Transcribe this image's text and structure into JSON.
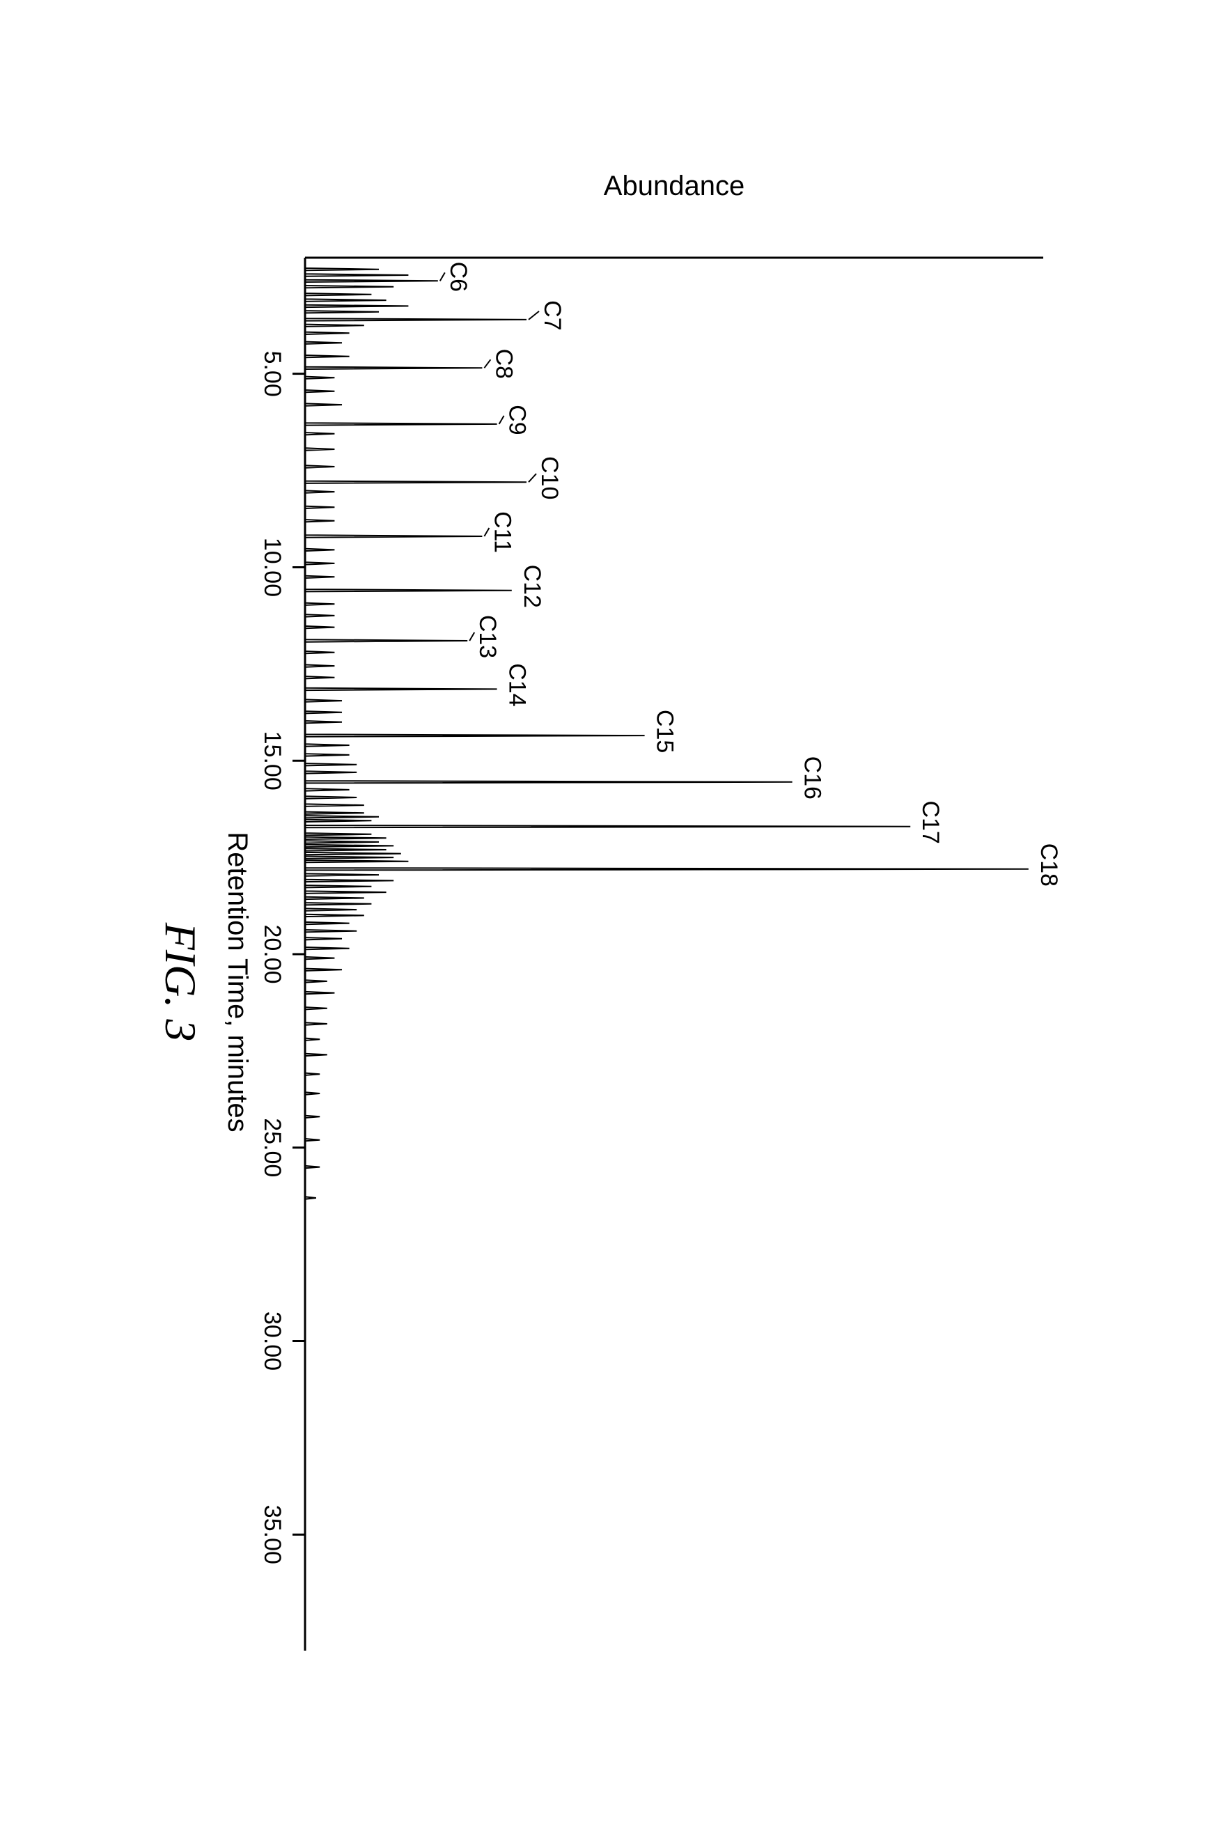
{
  "chromatogram": {
    "type": "chromatogram",
    "caption": "FIG. 3",
    "caption_fontsize": 64,
    "caption_fontfamily": "Times New Roman",
    "caption_fontstyle": "italic",
    "xlabel": "Retention Time, minutes",
    "ylabel": "Abundance",
    "label_fontsize": 40,
    "tick_fontsize": 34,
    "peak_label_fontsize": 34,
    "background_color": "#ffffff",
    "line_color": "#000000",
    "line_width": 2,
    "axis_color": "#000000",
    "axis_width": 3,
    "xlim": [
      2.0,
      38.0
    ],
    "ylim": [
      0,
      100
    ],
    "xtick_step": 5.0,
    "xticks": [
      {
        "x": 5.0,
        "label": "5.00"
      },
      {
        "x": 10.0,
        "label": "10.00"
      },
      {
        "x": 15.0,
        "label": "15.00"
      },
      {
        "x": 20.0,
        "label": "20.00"
      },
      {
        "x": 25.0,
        "label": "25.00"
      },
      {
        "x": 30.0,
        "label": "30.00"
      },
      {
        "x": 35.0,
        "label": "35.00"
      }
    ],
    "peaks": [
      {
        "name": "C6",
        "x": 2.6,
        "height": 18,
        "leader": true,
        "label_y_offset": 6
      },
      {
        "name": "C7",
        "x": 3.6,
        "height": 30,
        "leader": true,
        "label_y_offset": 14
      },
      {
        "name": "C8",
        "x": 4.85,
        "height": 24,
        "leader": true,
        "label_y_offset": 8
      },
      {
        "name": "C9",
        "x": 6.3,
        "height": 26,
        "leader": true,
        "label_y_offset": 6
      },
      {
        "name": "C10",
        "x": 7.8,
        "height": 30,
        "leader": true,
        "label_y_offset": 10
      },
      {
        "name": "C11",
        "x": 9.2,
        "height": 24,
        "leader": true,
        "label_y_offset": 6
      },
      {
        "name": "C12",
        "x": 10.6,
        "height": 28,
        "leader": false,
        "label_y_offset": 6
      },
      {
        "name": "C13",
        "x": 11.9,
        "height": 22,
        "leader": true,
        "label_y_offset": 6
      },
      {
        "name": "C14",
        "x": 13.15,
        "height": 26,
        "leader": false,
        "label_y_offset": 6
      },
      {
        "name": "C15",
        "x": 14.35,
        "height": 46,
        "leader": false,
        "label_y_offset": 6
      },
      {
        "name": "C16",
        "x": 15.55,
        "height": 66,
        "leader": false,
        "label_y_offset": 6
      },
      {
        "name": "C17",
        "x": 16.7,
        "height": 82,
        "leader": false,
        "label_y_offset": 6
      },
      {
        "name": "C18",
        "x": 17.8,
        "height": 98,
        "leader": false,
        "label_y_offset": 6
      }
    ],
    "minor_peaks": [
      {
        "x": 2.3,
        "height": 10
      },
      {
        "x": 2.45,
        "height": 14
      },
      {
        "x": 2.75,
        "height": 12
      },
      {
        "x": 2.95,
        "height": 9
      },
      {
        "x": 3.1,
        "height": 11
      },
      {
        "x": 3.25,
        "height": 14
      },
      {
        "x": 3.4,
        "height": 10
      },
      {
        "x": 3.75,
        "height": 8
      },
      {
        "x": 3.95,
        "height": 6
      },
      {
        "x": 4.2,
        "height": 5
      },
      {
        "x": 4.55,
        "height": 6
      },
      {
        "x": 5.1,
        "height": 4
      },
      {
        "x": 5.45,
        "height": 4
      },
      {
        "x": 5.8,
        "height": 5
      },
      {
        "x": 6.55,
        "height": 4
      },
      {
        "x": 6.95,
        "height": 4
      },
      {
        "x": 7.4,
        "height": 4
      },
      {
        "x": 8.05,
        "height": 4
      },
      {
        "x": 8.45,
        "height": 4
      },
      {
        "x": 8.8,
        "height": 4
      },
      {
        "x": 9.55,
        "height": 4
      },
      {
        "x": 9.9,
        "height": 4
      },
      {
        "x": 10.25,
        "height": 4
      },
      {
        "x": 10.95,
        "height": 4
      },
      {
        "x": 11.25,
        "height": 4
      },
      {
        "x": 11.55,
        "height": 4
      },
      {
        "x": 12.2,
        "height": 4
      },
      {
        "x": 12.55,
        "height": 4
      },
      {
        "x": 12.85,
        "height": 4
      },
      {
        "x": 13.45,
        "height": 5
      },
      {
        "x": 13.75,
        "height": 5
      },
      {
        "x": 14.0,
        "height": 5
      },
      {
        "x": 14.6,
        "height": 6
      },
      {
        "x": 14.85,
        "height": 6
      },
      {
        "x": 15.1,
        "height": 7
      },
      {
        "x": 15.3,
        "height": 7
      },
      {
        "x": 15.75,
        "height": 6
      },
      {
        "x": 15.95,
        "height": 7
      },
      {
        "x": 16.15,
        "height": 8
      },
      {
        "x": 16.35,
        "height": 8
      },
      {
        "x": 16.45,
        "height": 10
      },
      {
        "x": 16.55,
        "height": 9
      },
      {
        "x": 16.9,
        "height": 9
      },
      {
        "x": 17.0,
        "height": 11
      },
      {
        "x": 17.1,
        "height": 10
      },
      {
        "x": 17.2,
        "height": 12
      },
      {
        "x": 17.3,
        "height": 11
      },
      {
        "x": 17.4,
        "height": 13
      },
      {
        "x": 17.5,
        "height": 12
      },
      {
        "x": 17.6,
        "height": 14
      },
      {
        "x": 17.95,
        "height": 10
      },
      {
        "x": 18.1,
        "height": 12
      },
      {
        "x": 18.25,
        "height": 9
      },
      {
        "x": 18.4,
        "height": 11
      },
      {
        "x": 18.55,
        "height": 8
      },
      {
        "x": 18.7,
        "height": 9
      },
      {
        "x": 18.85,
        "height": 7
      },
      {
        "x": 19.0,
        "height": 8
      },
      {
        "x": 19.2,
        "height": 6
      },
      {
        "x": 19.4,
        "height": 7
      },
      {
        "x": 19.6,
        "height": 5
      },
      {
        "x": 19.85,
        "height": 6
      },
      {
        "x": 20.1,
        "height": 4
      },
      {
        "x": 20.4,
        "height": 5
      },
      {
        "x": 20.7,
        "height": 3
      },
      {
        "x": 21.0,
        "height": 4
      },
      {
        "x": 21.4,
        "height": 3
      },
      {
        "x": 21.8,
        "height": 3
      },
      {
        "x": 22.2,
        "height": 2
      },
      {
        "x": 22.6,
        "height": 3
      },
      {
        "x": 23.1,
        "height": 2
      },
      {
        "x": 23.6,
        "height": 2
      },
      {
        "x": 24.2,
        "height": 2
      },
      {
        "x": 24.8,
        "height": 2
      },
      {
        "x": 25.5,
        "height": 2
      },
      {
        "x": 26.3,
        "height": 1.5
      }
    ],
    "trace": {
      "start_x": 2.0,
      "end_x": 38.0,
      "baseline_y": 0.0
    }
  }
}
